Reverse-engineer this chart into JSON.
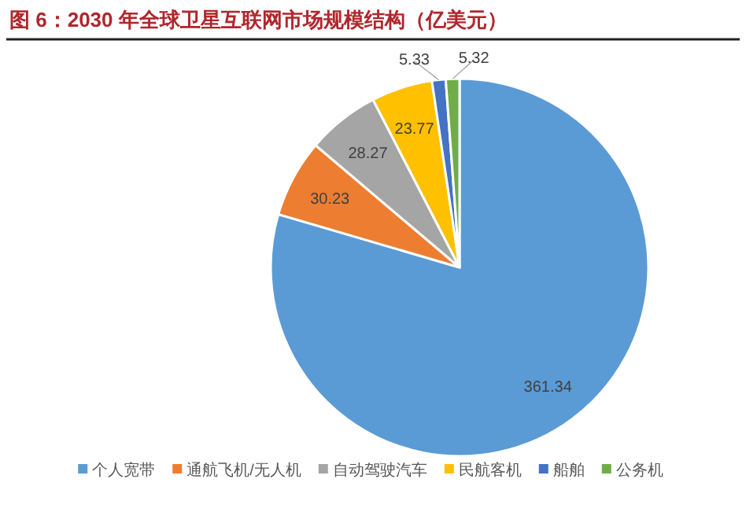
{
  "chart_data": {
    "type": "pie",
    "title": "图 6：2030 年全球卫星互联网市场规模结构（亿美元）",
    "categories": [
      "个人宽带",
      "通航飞机/无人机",
      "自动驾驶汽车",
      "民航客机",
      "船舶",
      "公务机"
    ],
    "values": [
      361.34,
      30.23,
      28.27,
      23.77,
      5.33,
      5.32
    ],
    "colors": [
      "#5b9bd5",
      "#ed7d31",
      "#a5a5a5",
      "#ffc000",
      "#4472c4",
      "#70ad47"
    ],
    "data_labels": true,
    "legend": "bottom"
  }
}
